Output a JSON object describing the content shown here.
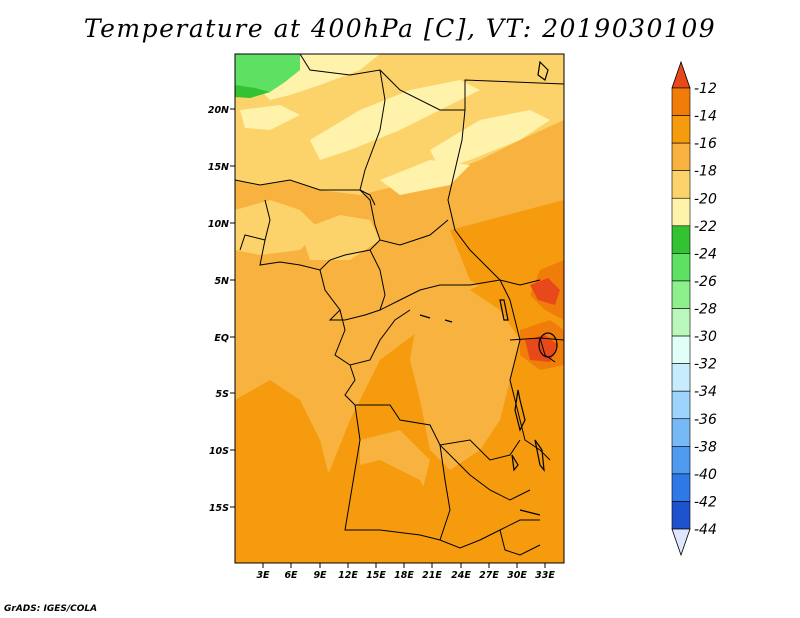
{
  "title": "Temperature at 400hPa [C], VT: 2019030109",
  "footer": "GrADS: IGES/COLA",
  "map": {
    "lon_range": [
      0,
      36
    ],
    "lat_range": [
      -20,
      25
    ],
    "y_ticks": [
      "20N",
      "15N",
      "10N",
      "5N",
      "EQ",
      "5S",
      "10S",
      "15S"
    ],
    "x_ticks": [
      "3E",
      "6E",
      "9E",
      "12E",
      "15E",
      "18E",
      "21E",
      "24E",
      "27E",
      "30E",
      "33E"
    ]
  },
  "colorbar": {
    "labels": [
      "-12",
      "-14",
      "-16",
      "-18",
      "-20",
      "-22",
      "-24",
      "-26",
      "-28",
      "-30",
      "-32",
      "-34",
      "-36",
      "-38",
      "-40",
      "-42",
      "-44"
    ],
    "colors": [
      "#e8491a",
      "#f07d0a",
      "#f59b0d",
      "#f8b23f",
      "#fbd36a",
      "#fff2aa",
      "#32c232",
      "#5ee063",
      "#8df08c",
      "#b9f7bc",
      "#e2fff7",
      "#c7ecfd",
      "#9ed4fb",
      "#76b9f5",
      "#4f99ef",
      "#2f79e6",
      "#1f52cd",
      "#1a33a8",
      "#111a78",
      "#e0e6ff"
    ]
  },
  "colors": {
    "orange_dark": "#f59b0d",
    "orange_mid": "#f8b23f",
    "yellow_light": "#fbd36a",
    "cream": "#fff2aa",
    "green": "#5ee063",
    "green_dark": "#32c232",
    "red_orange": "#f07d0a",
    "red": "#e8491a"
  }
}
